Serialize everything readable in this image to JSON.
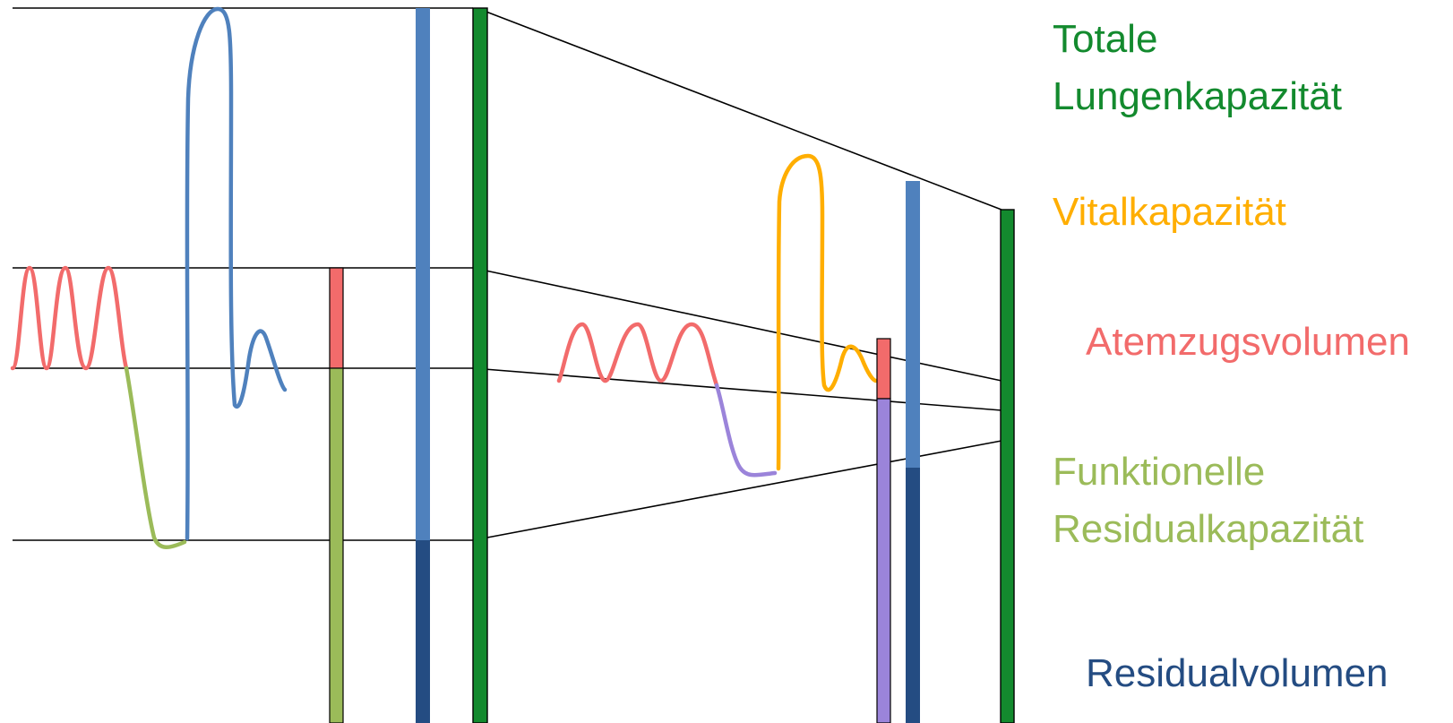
{
  "colors": {
    "total": "#138A2E",
    "vital": "#FFAE00",
    "tidal": "#F26B6B",
    "functional": "#9BBB59",
    "residual": "#244C82",
    "inspiratory": "#4F81BD",
    "expiratory": "#9B84DA",
    "line": "#000000"
  },
  "labels": {
    "total": [
      "Totale",
      "Lungenkapazität"
    ],
    "vital": "Vitalkapazität",
    "tidal": "Atemzugsvolumen",
    "functional": [
      "Funktionelle",
      "Residualkapazität"
    ],
    "residual": "Residualvolumen"
  }
}
